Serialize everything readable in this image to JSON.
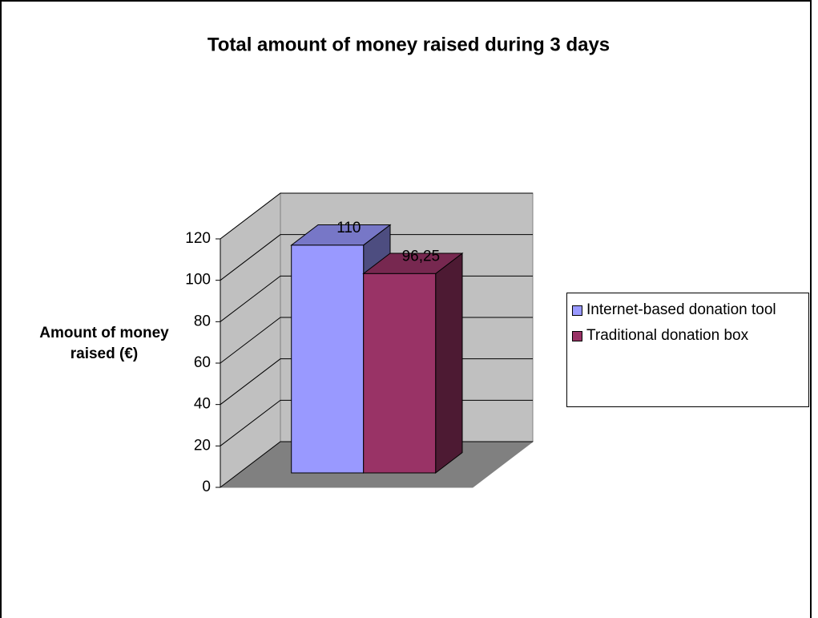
{
  "chart_data": {
    "type": "bar3d",
    "title": "Total amount of money raised during 3 days",
    "y_label": "Amount of money raised (€)",
    "categories": [
      null
    ],
    "series": [
      {
        "name": "Internet-based donation tool",
        "color": "#9999ff",
        "values": [
          110
        ],
        "value_labels": [
          "110"
        ]
      },
      {
        "name": "Traditional donation box",
        "color": "#993366",
        "values": [
          96.25
        ],
        "value_labels": [
          "96,25"
        ]
      }
    ],
    "ylim": [
      0,
      120
    ],
    "yticks": [
      0,
      20,
      40,
      60,
      80,
      100,
      120
    ],
    "grid": true,
    "legend": "right"
  }
}
